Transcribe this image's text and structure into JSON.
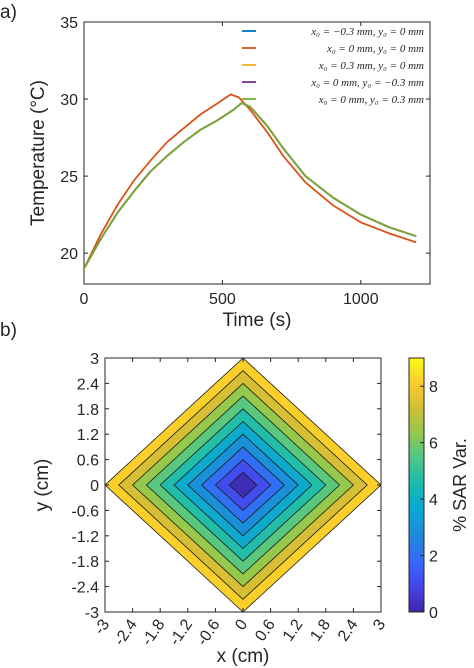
{
  "chart_data": [
    {
      "panel_label": "a)",
      "type": "line",
      "xlabel": "Time (s)",
      "ylabel": "Temperature (°C)",
      "xlim": [
        0,
        1250
      ],
      "ylim": [
        18,
        35
      ],
      "xticks": [
        0,
        500,
        1000
      ],
      "yticks": [
        20,
        25,
        30,
        35
      ],
      "legend_position": "top-right",
      "series": [
        {
          "name": "x0 = −0.3 mm, y0 = 0 mm",
          "legend_label": "x₀ = −0.3 mm, y₀ = 0 mm",
          "color": "#0072BD",
          "x": [
            0,
            60,
            120,
            180,
            240,
            300,
            360,
            420,
            480,
            540,
            570,
            600,
            660,
            720,
            800,
            900,
            1000,
            1100,
            1200
          ],
          "y": [
            19.0,
            20.9,
            22.6,
            24.0,
            25.3,
            26.3,
            27.2,
            28.0,
            28.6,
            29.3,
            29.75,
            29.5,
            28.3,
            26.8,
            25.0,
            23.6,
            22.5,
            21.7,
            21.1
          ]
        },
        {
          "name": "x0 = 0 mm, y0 = 0 mm",
          "legend_label": "x₀ = 0 mm, y₀ = 0 mm",
          "color": "#D95319",
          "x": [
            0,
            60,
            120,
            180,
            240,
            300,
            360,
            420,
            480,
            530,
            560,
            600,
            660,
            720,
            800,
            900,
            1000,
            1100,
            1200
          ],
          "y": [
            19.0,
            21.2,
            23.1,
            24.7,
            26.0,
            27.2,
            28.1,
            29.0,
            29.7,
            30.3,
            30.1,
            29.3,
            27.9,
            26.3,
            24.6,
            23.1,
            22.0,
            21.3,
            20.7
          ]
        },
        {
          "name": "x0 = 0.3 mm, y0 = 0 mm",
          "legend_label": "x₀ = 0.3 mm, y₀ = 0 mm",
          "color": "#EDB120",
          "x": [
            0,
            60,
            120,
            180,
            240,
            300,
            360,
            420,
            480,
            540,
            570,
            600,
            660,
            720,
            800,
            900,
            1000,
            1100,
            1200
          ],
          "y": [
            19.0,
            20.9,
            22.6,
            24.0,
            25.3,
            26.3,
            27.2,
            28.0,
            28.6,
            29.3,
            29.75,
            29.5,
            28.3,
            26.8,
            25.0,
            23.6,
            22.5,
            21.7,
            21.1
          ]
        },
        {
          "name": "x0 = 0 mm, y0 = −0.3 mm",
          "legend_label": "x₀ = 0 mm, y₀ = −0.3 mm",
          "color": "#7E2F8E",
          "x": [
            0,
            60,
            120,
            180,
            240,
            300,
            360,
            420,
            480,
            540,
            570,
            600,
            660,
            720,
            800,
            900,
            1000,
            1100,
            1200
          ],
          "y": [
            19.0,
            20.9,
            22.6,
            24.0,
            25.3,
            26.3,
            27.2,
            28.0,
            28.6,
            29.3,
            29.75,
            29.5,
            28.3,
            26.8,
            25.0,
            23.6,
            22.5,
            21.7,
            21.1
          ]
        },
        {
          "name": "x0 = 0 mm, y0 = 0.3 mm",
          "legend_label": "x₀ = 0 mm, y₀ = 0.3 mm",
          "color": "#77AC30",
          "x": [
            0,
            60,
            120,
            180,
            240,
            300,
            360,
            420,
            480,
            540,
            570,
            600,
            660,
            720,
            800,
            900,
            1000,
            1100,
            1200
          ],
          "y": [
            19.0,
            20.9,
            22.6,
            24.0,
            25.3,
            26.3,
            27.2,
            28.0,
            28.6,
            29.3,
            29.75,
            29.5,
            28.3,
            26.8,
            25.0,
            23.6,
            22.5,
            21.7,
            21.1
          ]
        }
      ]
    },
    {
      "panel_label": "b)",
      "type": "heatmap",
      "subtype": "filled-contour",
      "xlabel": "x (cm)",
      "ylabel": "y (cm)",
      "xlim": [
        -3,
        3
      ],
      "ylim": [
        -3,
        3
      ],
      "xticks": [
        -3,
        -2.4,
        -1.8,
        -1.2,
        -0.6,
        0,
        0.6,
        1.2,
        1.8,
        2.4,
        3
      ],
      "yticks": [
        -3,
        -2.4,
        -1.8,
        -1.2,
        -0.6,
        0,
        0.6,
        1.2,
        1.8,
        2.4,
        3
      ],
      "xtick_labels": [
        "-3",
        "-2.4",
        "-1.8",
        "-1.2",
        "-0.6",
        "0",
        "0.6",
        "1.2",
        "1.8",
        "2.4",
        "3"
      ],
      "ytick_labels": [
        "-3",
        "-2.4",
        "-1.8",
        "-1.2",
        "-0.6",
        "0",
        "0.6",
        "1.2",
        "1.8",
        "2.4",
        "3"
      ],
      "domain_shape": "diamond |x| + |y| <= 3",
      "contour_boundaries_l1": [
        0.3,
        0.6,
        0.9,
        1.2,
        1.5,
        1.8,
        2.1,
        2.4,
        2.7,
        3.0
      ],
      "level_values": [
        0.2,
        1.1,
        2.0,
        2.9,
        3.8,
        4.7,
        5.6,
        6.4,
        7.3,
        8.2
      ],
      "colorbar": {
        "label": "% SAR Var.",
        "range": [
          0,
          9
        ],
        "ticks": [
          0,
          2,
          4,
          6,
          8
        ],
        "tick_labels": [
          "0",
          "2",
          "4",
          "6",
          "8"
        ],
        "colormap": "parula"
      }
    }
  ]
}
